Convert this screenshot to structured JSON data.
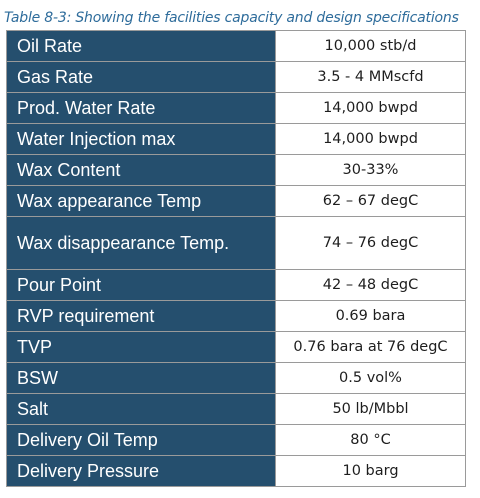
{
  "caption": "Table 8-3: Showing the facilities capacity and design specifications",
  "rows": [
    {
      "parameter": "Oil Rate",
      "value": "10,000 stb/d"
    },
    {
      "parameter": "Gas Rate",
      "value": "3.5 - 4 MMscfd"
    },
    {
      "parameter": "Prod. Water Rate",
      "value": "14,000 bwpd"
    },
    {
      "parameter": "Water Injection max",
      "value": "14,000 bwpd"
    },
    {
      "parameter": "Wax Content",
      "value": "30-33%"
    },
    {
      "parameter": "Wax appearance Temp",
      "value": "62 – 67 degC"
    },
    {
      "parameter": "Wax disappearance Temp.",
      "value": "74 – 76 degC"
    },
    {
      "parameter": "Pour Point",
      "value": "42 – 48 degC"
    },
    {
      "parameter": "RVP requirement",
      "value": "0.69 bara"
    },
    {
      "parameter": "TVP",
      "value": "0.76 bara at 76 degC"
    },
    {
      "parameter": "BSW",
      "value": "0.5 vol%"
    },
    {
      "parameter": "Salt",
      "value": "50 lb/Mbbl"
    },
    {
      "parameter": "Delivery Oil Temp",
      "value": "80 °C"
    },
    {
      "parameter": "Delivery Pressure",
      "value": "10 barg"
    }
  ],
  "colors": {
    "caption": "#2e6c9b",
    "parameter_cell_bg": "#254f6e",
    "parameter_text": "#ffffff",
    "value_cell_bg": "#ffffff",
    "value_text": "#1e1e1e",
    "border": "#9a9a9a"
  }
}
